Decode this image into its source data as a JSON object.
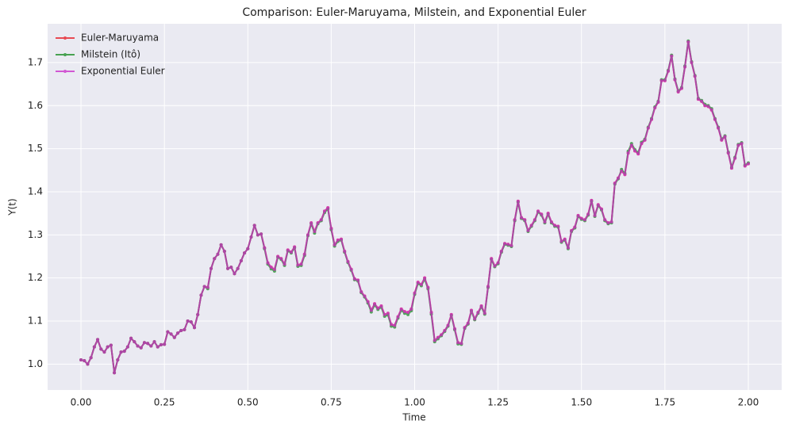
{
  "chart_data": {
    "type": "line",
    "title": "Comparison: Euler-Maruyama, Milstein, and Exponential Euler",
    "xlabel": "Time",
    "ylabel": "Y(t)",
    "x": [
      0,
      0.01,
      0.02,
      0.03,
      0.04,
      0.05,
      0.06,
      0.07,
      0.08,
      0.09,
      0.1,
      0.11,
      0.12,
      0.13,
      0.14,
      0.15,
      0.16,
      0.17,
      0.18,
      0.19,
      0.2,
      0.21,
      0.22,
      0.23,
      0.24,
      0.25,
      0.26,
      0.27,
      0.28,
      0.29,
      0.3,
      0.31,
      0.32,
      0.33,
      0.34,
      0.35,
      0.36,
      0.37,
      0.38,
      0.39,
      0.4,
      0.41,
      0.42,
      0.43,
      0.44,
      0.45,
      0.46,
      0.47,
      0.48,
      0.49,
      0.5,
      0.51,
      0.52,
      0.53,
      0.54,
      0.55,
      0.56,
      0.57,
      0.58,
      0.59,
      0.6,
      0.61,
      0.62,
      0.63,
      0.64,
      0.65,
      0.66,
      0.67,
      0.68,
      0.69,
      0.7,
      0.71,
      0.72,
      0.73,
      0.74,
      0.75,
      0.76,
      0.77,
      0.78,
      0.79,
      0.8,
      0.81,
      0.82,
      0.83,
      0.84,
      0.85,
      0.86,
      0.87,
      0.88,
      0.89,
      0.9,
      0.91,
      0.92,
      0.93,
      0.94,
      0.95,
      0.96,
      0.97,
      0.98,
      0.99,
      1,
      1.01,
      1.02,
      1.03,
      1.04,
      1.05,
      1.06,
      1.07,
      1.08,
      1.09,
      1.1,
      1.11,
      1.12,
      1.13,
      1.14,
      1.15,
      1.16,
      1.17,
      1.18,
      1.19,
      1.2,
      1.21,
      1.22,
      1.23,
      1.24,
      1.25,
      1.26,
      1.27,
      1.28,
      1.29,
      1.3,
      1.31,
      1.32,
      1.33,
      1.34,
      1.35,
      1.36,
      1.37,
      1.38,
      1.39,
      1.4,
      1.41,
      1.42,
      1.43,
      1.44,
      1.45,
      1.46,
      1.47,
      1.48,
      1.49,
      1.5,
      1.51,
      1.52,
      1.53,
      1.54,
      1.55,
      1.56,
      1.57,
      1.58,
      1.59,
      1.6,
      1.61,
      1.62,
      1.63,
      1.64,
      1.65,
      1.66,
      1.67,
      1.68,
      1.69,
      1.7,
      1.71,
      1.72,
      1.73,
      1.74,
      1.75,
      1.76,
      1.77,
      1.78,
      1.79,
      1.8,
      1.81,
      1.82,
      1.83,
      1.84,
      1.85,
      1.86,
      1.87,
      1.88,
      1.89,
      1.9,
      1.91,
      1.92,
      1.93,
      1.94,
      1.95,
      1.96,
      1.97,
      1.98,
      1.99,
      2
    ],
    "series": [
      {
        "name": "Euler-Maruyama",
        "color": "#e8212b",
        "values": [
          1.01,
          1.008,
          1.0,
          1.015,
          1.04,
          1.057,
          1.035,
          1.028,
          1.04,
          1.044,
          0.98,
          1.01,
          1.028,
          1.03,
          1.04,
          1.06,
          1.052,
          1.042,
          1.038,
          1.05,
          1.048,
          1.042,
          1.052,
          1.04,
          1.045,
          1.046,
          1.075,
          1.07,
          1.062,
          1.072,
          1.078,
          1.08,
          1.1,
          1.098,
          1.085,
          1.115,
          1.16,
          1.18,
          1.178,
          1.222,
          1.245,
          1.255,
          1.277,
          1.262,
          1.222,
          1.225,
          1.21,
          1.222,
          1.24,
          1.258,
          1.268,
          1.295,
          1.322,
          1.3,
          1.302,
          1.27,
          1.235,
          1.225,
          1.22,
          1.25,
          1.245,
          1.232,
          1.265,
          1.26,
          1.272,
          1.23,
          1.232,
          1.255,
          1.3,
          1.328,
          1.308,
          1.328,
          1.335,
          1.355,
          1.363,
          1.315,
          1.277,
          1.288,
          1.29,
          1.262,
          1.238,
          1.22,
          1.198,
          1.195,
          1.168,
          1.158,
          1.145,
          1.125,
          1.14,
          1.13,
          1.135,
          1.115,
          1.118,
          1.092,
          1.09,
          1.11,
          1.128,
          1.122,
          1.12,
          1.128,
          1.165,
          1.19,
          1.185,
          1.2,
          1.178,
          1.12,
          1.055,
          1.062,
          1.068,
          1.078,
          1.09,
          1.115,
          1.082,
          1.05,
          1.048,
          1.085,
          1.095,
          1.125,
          1.105,
          1.12,
          1.135,
          1.118,
          1.18,
          1.245,
          1.228,
          1.235,
          1.262,
          1.28,
          1.278,
          1.275,
          1.335,
          1.378,
          1.34,
          1.335,
          1.31,
          1.322,
          1.335,
          1.355,
          1.348,
          1.33,
          1.35,
          1.33,
          1.322,
          1.32,
          1.285,
          1.29,
          1.27,
          1.31,
          1.318,
          1.345,
          1.338,
          1.335,
          1.348,
          1.38,
          1.345,
          1.37,
          1.36,
          1.335,
          1.328,
          1.33,
          1.42,
          1.432,
          1.448,
          1.44,
          1.49,
          1.508,
          1.495,
          1.488,
          1.512,
          1.52,
          1.548,
          1.568,
          1.595,
          1.608,
          1.658,
          1.658,
          1.68,
          1.715,
          1.66,
          1.632,
          1.64,
          1.69,
          1.748,
          1.7,
          1.668,
          1.615,
          1.61,
          1.6,
          1.598,
          1.59,
          1.568,
          1.548,
          1.52,
          1.528,
          1.49,
          1.455,
          1.478,
          1.508,
          1.512,
          1.46,
          1.465
        ]
      },
      {
        "name": "Milstein (Itô)",
        "color": "#1f8f2a",
        "values": [
          1.01,
          1.008,
          1.0,
          1.015,
          1.04,
          1.057,
          1.035,
          1.028,
          1.04,
          1.044,
          0.98,
          1.01,
          1.028,
          1.03,
          1.04,
          1.06,
          1.052,
          1.042,
          1.038,
          1.05,
          1.048,
          1.042,
          1.052,
          1.04,
          1.045,
          1.046,
          1.075,
          1.07,
          1.062,
          1.072,
          1.078,
          1.08,
          1.1,
          1.098,
          1.085,
          1.115,
          1.16,
          1.18,
          1.175,
          1.222,
          1.245,
          1.255,
          1.277,
          1.262,
          1.222,
          1.225,
          1.21,
          1.222,
          1.24,
          1.258,
          1.268,
          1.295,
          1.322,
          1.3,
          1.302,
          1.268,
          1.232,
          1.221,
          1.216,
          1.248,
          1.243,
          1.229,
          1.263,
          1.258,
          1.27,
          1.227,
          1.229,
          1.252,
          1.298,
          1.326,
          1.304,
          1.326,
          1.333,
          1.352,
          1.36,
          1.312,
          1.274,
          1.285,
          1.288,
          1.26,
          1.236,
          1.218,
          1.196,
          1.193,
          1.166,
          1.156,
          1.142,
          1.121,
          1.137,
          1.127,
          1.132,
          1.111,
          1.114,
          1.088,
          1.086,
          1.107,
          1.125,
          1.118,
          1.115,
          1.124,
          1.162,
          1.187,
          1.182,
          1.197,
          1.175,
          1.116,
          1.052,
          1.059,
          1.066,
          1.076,
          1.088,
          1.113,
          1.08,
          1.047,
          1.046,
          1.083,
          1.093,
          1.123,
          1.103,
          1.118,
          1.133,
          1.116,
          1.178,
          1.243,
          1.226,
          1.233,
          1.26,
          1.278,
          1.276,
          1.273,
          1.333,
          1.376,
          1.338,
          1.333,
          1.308,
          1.32,
          1.333,
          1.353,
          1.346,
          1.328,
          1.348,
          1.328,
          1.32,
          1.318,
          1.283,
          1.288,
          1.268,
          1.308,
          1.316,
          1.343,
          1.336,
          1.333,
          1.346,
          1.378,
          1.343,
          1.368,
          1.358,
          1.333,
          1.326,
          1.328,
          1.418,
          1.43,
          1.452,
          1.443,
          1.494,
          1.512,
          1.498,
          1.491,
          1.515,
          1.522,
          1.55,
          1.57,
          1.597,
          1.61,
          1.66,
          1.66,
          1.682,
          1.717,
          1.662,
          1.634,
          1.642,
          1.692,
          1.75,
          1.702,
          1.67,
          1.617,
          1.612,
          1.603,
          1.6,
          1.593,
          1.57,
          1.55,
          1.522,
          1.53,
          1.492,
          1.457,
          1.48,
          1.51,
          1.514,
          1.462,
          1.467
        ]
      },
      {
        "name": "Exponential Euler",
        "color": "#cc33cc",
        "values": [
          1.01,
          1.008,
          1.0,
          1.015,
          1.04,
          1.057,
          1.035,
          1.028,
          1.04,
          1.044,
          0.98,
          1.01,
          1.028,
          1.03,
          1.04,
          1.06,
          1.052,
          1.042,
          1.038,
          1.05,
          1.048,
          1.042,
          1.052,
          1.04,
          1.045,
          1.046,
          1.075,
          1.07,
          1.062,
          1.072,
          1.078,
          1.08,
          1.1,
          1.098,
          1.085,
          1.115,
          1.16,
          1.18,
          1.178,
          1.222,
          1.245,
          1.255,
          1.277,
          1.262,
          1.222,
          1.225,
          1.21,
          1.222,
          1.24,
          1.258,
          1.268,
          1.295,
          1.322,
          1.3,
          1.302,
          1.27,
          1.235,
          1.225,
          1.22,
          1.25,
          1.245,
          1.232,
          1.265,
          1.26,
          1.272,
          1.23,
          1.232,
          1.255,
          1.3,
          1.328,
          1.308,
          1.328,
          1.335,
          1.355,
          1.363,
          1.315,
          1.277,
          1.288,
          1.29,
          1.262,
          1.238,
          1.22,
          1.198,
          1.195,
          1.168,
          1.158,
          1.145,
          1.125,
          1.14,
          1.13,
          1.135,
          1.115,
          1.118,
          1.092,
          1.09,
          1.11,
          1.128,
          1.122,
          1.12,
          1.128,
          1.165,
          1.19,
          1.185,
          1.2,
          1.178,
          1.12,
          1.055,
          1.062,
          1.068,
          1.078,
          1.09,
          1.115,
          1.082,
          1.05,
          1.048,
          1.085,
          1.095,
          1.125,
          1.105,
          1.12,
          1.135,
          1.118,
          1.18,
          1.245,
          1.228,
          1.235,
          1.262,
          1.28,
          1.278,
          1.275,
          1.335,
          1.378,
          1.34,
          1.335,
          1.31,
          1.322,
          1.335,
          1.355,
          1.348,
          1.33,
          1.35,
          1.33,
          1.322,
          1.32,
          1.285,
          1.29,
          1.27,
          1.31,
          1.318,
          1.345,
          1.338,
          1.335,
          1.348,
          1.38,
          1.345,
          1.37,
          1.36,
          1.335,
          1.328,
          1.33,
          1.42,
          1.432,
          1.448,
          1.44,
          1.49,
          1.508,
          1.495,
          1.488,
          1.512,
          1.52,
          1.548,
          1.568,
          1.595,
          1.608,
          1.658,
          1.658,
          1.68,
          1.715,
          1.66,
          1.632,
          1.64,
          1.69,
          1.748,
          1.7,
          1.668,
          1.615,
          1.61,
          1.6,
          1.598,
          1.59,
          1.568,
          1.548,
          1.52,
          1.528,
          1.49,
          1.455,
          1.478,
          1.508,
          1.512,
          1.46,
          1.465
        ]
      }
    ],
    "xlim": [
      -0.1,
      2.1
    ],
    "xticks": [
      {
        "value": 0,
        "label": "0.00"
      },
      0.25,
      {
        "value": 0.5,
        "label": "0.50"
      },
      0.75,
      {
        "value": 1,
        "label": "1.00"
      },
      1.25,
      {
        "value": 1.5,
        "label": "1.50"
      },
      1.75,
      {
        "value": 2,
        "label": "2.00"
      }
    ],
    "ylim": [
      0.94,
      1.79
    ],
    "yticks": [
      {
        "value": 1,
        "label": "1.0"
      },
      1.1,
      1.2,
      1.3,
      1.4,
      1.5,
      1.6,
      1.7
    ],
    "grid": true,
    "legend": "upper left"
  }
}
